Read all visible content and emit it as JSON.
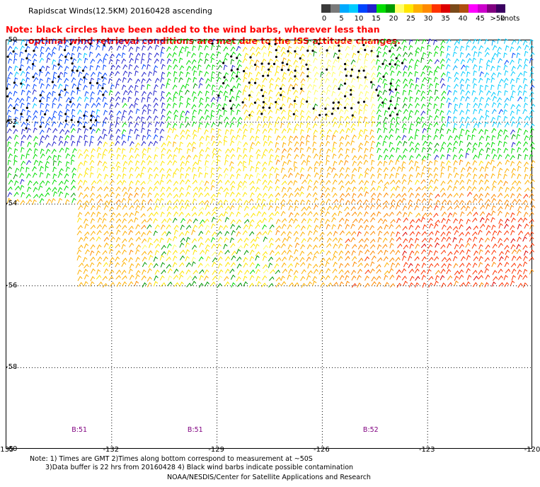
{
  "title": "Rapidscat Winds(12.5KM) 20160428 ascending",
  "note": {
    "line1": "Note: black circles have been added to the wind barbs, wherever less than",
    "line2": "optimal wind retrieval conditions are met due to the ISS attitude changes."
  },
  "colorbar": {
    "colors": [
      "#3a3a3a",
      "#7a7a7a",
      "#00aaff",
      "#00ccff",
      "#0044ff",
      "#2222cc",
      "#00dd00",
      "#009900",
      "#ffff66",
      "#ffe600",
      "#ffb000",
      "#ff8a00",
      "#ff3300",
      "#dd0000",
      "#7a4a1a",
      "#b05010",
      "#ff00ff",
      "#cc00cc",
      "#800080",
      "#3a0060"
    ],
    "labels": [
      "0",
      "5",
      "10",
      "15",
      "20",
      "25",
      "30",
      "35",
      "40",
      "45",
      ">50"
    ],
    "unit": "knots"
  },
  "map": {
    "lat_labels": [
      "-50",
      "-52",
      "-54",
      "-56",
      "-58",
      "-60"
    ],
    "lon_labels": [
      "-135",
      "-132",
      "-129",
      "-126",
      "-123",
      "-120"
    ],
    "lat_range": [
      -50,
      -60
    ],
    "lon_range": [
      -135,
      -120
    ],
    "gridlines": true,
    "rev_labels": [
      {
        "text": "B:51",
        "lon": -132.9
      },
      {
        "text": "B:51",
        "lon": -129.6
      },
      {
        "text": "B:52",
        "lon": -124.6
      }
    ]
  },
  "footer": {
    "line1": "Note: 1) Times are GMT 2)Times along bottom correspond to measurement at ~50S",
    "line2": "3)Data buffer is 22 hrs from 20160428 4) Black wind barbs indicate possible contamination",
    "line3": "NOAA/NESDIS/Center for Satellite Applications and Research"
  }
}
